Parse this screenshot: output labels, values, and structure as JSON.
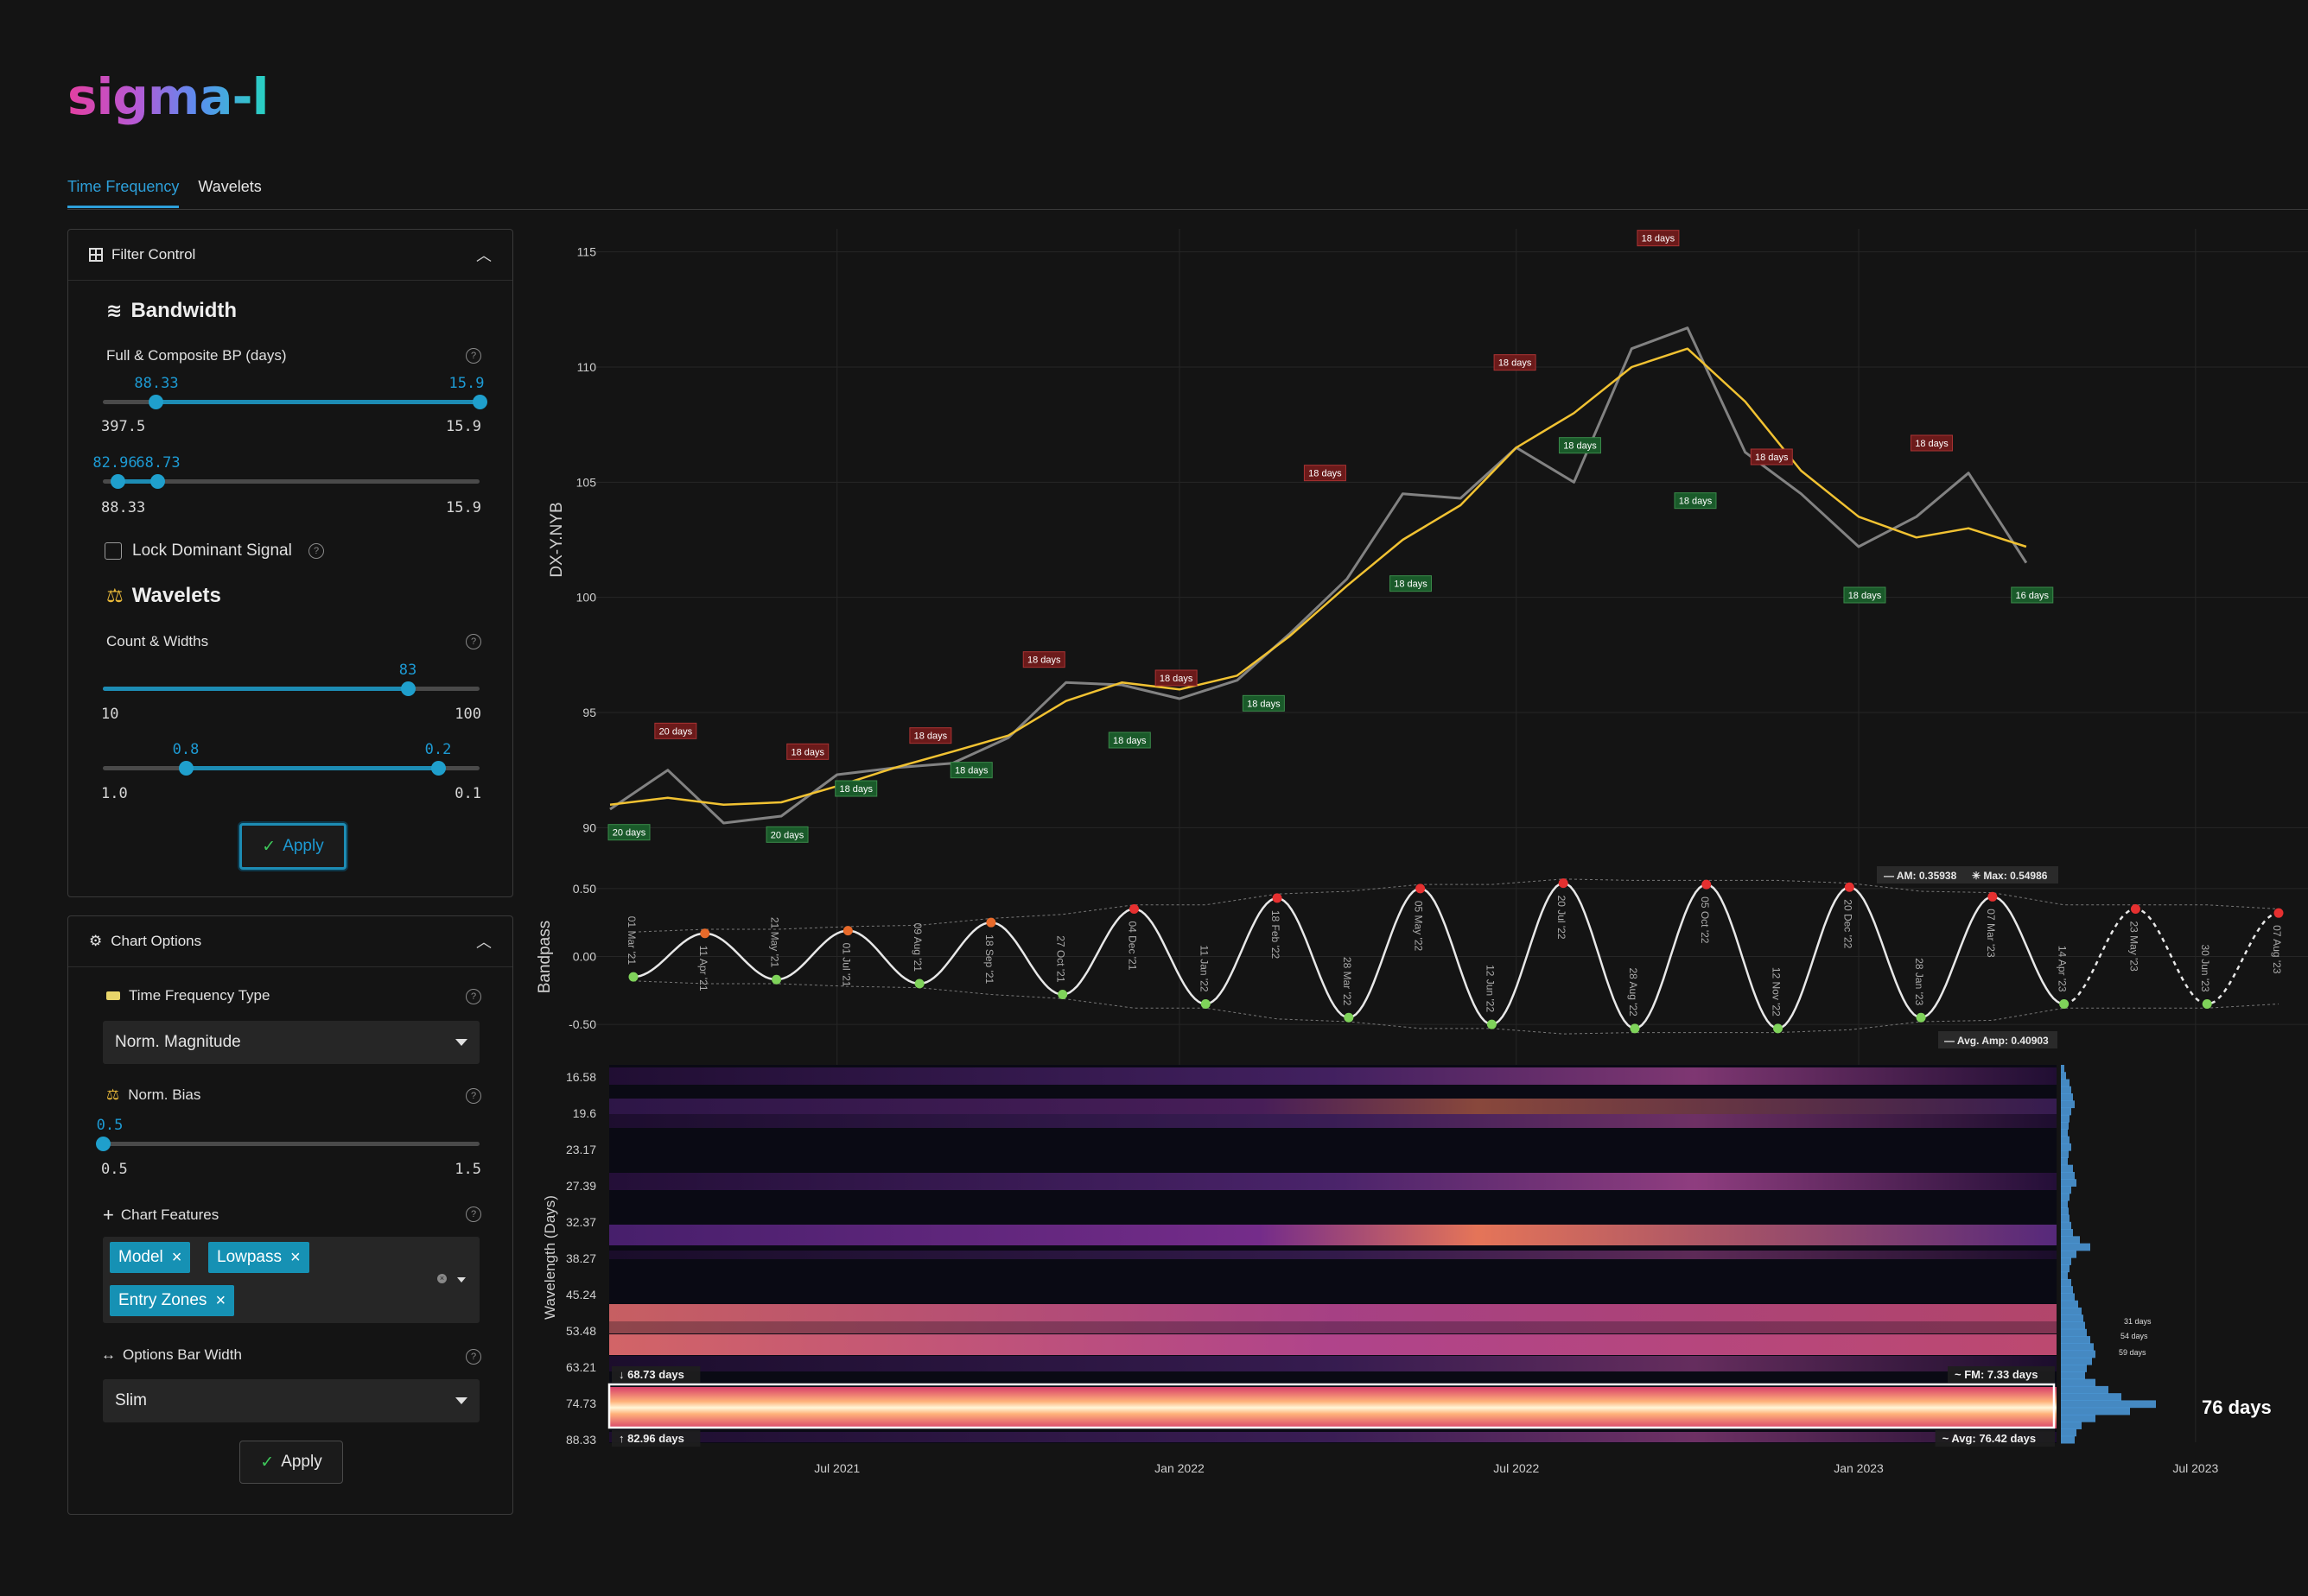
{
  "app": {
    "logo": "sigma-l"
  },
  "tabs": [
    {
      "label": "Time Frequency",
      "active": true
    },
    {
      "label": "Wavelets",
      "active": false
    }
  ],
  "filter_control": {
    "title": "Filter Control",
    "bandwidth": {
      "heading": "Bandwidth",
      "label": "Full & Composite BP (days)",
      "slider1": {
        "low_tip": "88.33",
        "high_tip": "15.9",
        "min": "397.5",
        "max": "15.9",
        "low_pct": 0.14,
        "high_pct": 1.0
      },
      "slider2": {
        "low_tip": "82.96",
        "high_tip": "68.73",
        "min": "88.33",
        "max": "15.9",
        "low_pct": 0.04,
        "high_pct": 0.145
      }
    },
    "lock_label": "Lock Dominant Signal",
    "wavelets": {
      "heading": "Wavelets",
      "label": "Count & Widths",
      "slider1": {
        "tip": "83",
        "min": "10",
        "max": "100",
        "pct": 0.81
      },
      "slider2": {
        "low_tip": "0.8",
        "high_tip": "0.2",
        "min": "1.0",
        "max": "0.1",
        "low_pct": 0.22,
        "high_pct": 0.89
      }
    },
    "apply_label": "Apply"
  },
  "chart_options": {
    "title": "Chart Options",
    "tf_type_label": "Time Frequency Type",
    "tf_type_value": "Norm. Magnitude",
    "norm_bias_label": "Norm. Bias",
    "norm_bias": {
      "tip": "0.5",
      "min": "0.5",
      "max": "1.5",
      "pct": 0.0
    },
    "features_label": "Chart Features",
    "features": [
      "Model",
      "Lowpass",
      "Entry Zones"
    ],
    "bar_width_label": "Options Bar Width",
    "bar_width_value": "Slim",
    "apply_label": "Apply"
  },
  "chart_data": [
    {
      "type": "line",
      "ylabel": "DX-Y.NYB",
      "ylim": [
        89,
        116
      ],
      "yticks": [
        90,
        95,
        100,
        105,
        110,
        115
      ],
      "x_axis_ticks": [
        "Jul 2021",
        "Jan 2022",
        "Jul 2022",
        "Jan 2023",
        "Jul 2023"
      ],
      "series": [
        {
          "name": "",
          "x": [
            "2021-03-01",
            "2021-04-01",
            "2021-05-01",
            "2021-06-01",
            "2021-07-01",
            "2021-08-01",
            "2021-09-01",
            "2021-10-01",
            "2021-11-01",
            "2021-12-01",
            "2022-01-01",
            "2022-02-01",
            "2022-03-01",
            "2022-04-01",
            "2022-05-01",
            "2022-06-01",
            "2022-07-01",
            "2022-08-01",
            "2022-09-01",
            "2022-10-01",
            "2022-11-01",
            "2022-12-01",
            "2023-01-01",
            "2023-02-01",
            "2023-03-01",
            "2023-04-01"
          ],
          "values": [
            90.8,
            92.5,
            90.2,
            90.5,
            92.3,
            92.6,
            92.8,
            93.9,
            96.3,
            96.2,
            95.6,
            96.4,
            98.4,
            100.8,
            104.5,
            104.3,
            106.5,
            105.0,
            110.8,
            111.7,
            106.3,
            104.5,
            102.2,
            103.5,
            105.4,
            101.5
          ]
        },
        {
          "name": "",
          "x": [
            "2021-03-01",
            "2021-04-01",
            "2021-05-01",
            "2021-06-01",
            "2021-07-01",
            "2021-08-01",
            "2021-09-01",
            "2021-10-01",
            "2021-11-01",
            "2021-12-01",
            "2022-01-01",
            "2022-02-01",
            "2022-03-01",
            "2022-04-01",
            "2022-05-01",
            "2022-06-01",
            "2022-07-01",
            "2022-08-01",
            "2022-09-01",
            "2022-10-01",
            "2022-11-01",
            "2022-12-01",
            "2023-01-01",
            "2023-02-01",
            "2023-03-01",
            "2023-04-01"
          ],
          "values": [
            91.0,
            91.3,
            91.0,
            91.1,
            91.8,
            92.6,
            93.3,
            94.0,
            95.5,
            96.3,
            96.0,
            96.6,
            98.3,
            100.5,
            102.5,
            104.0,
            106.5,
            108.0,
            110.0,
            110.8,
            108.5,
            105.5,
            103.5,
            102.6,
            103.0,
            102.2
          ]
        }
      ],
      "annotations": [
        {
          "text": "20 days",
          "kind": "high",
          "x": "2021-03-26",
          "y": 94.2
        },
        {
          "text": "20 days",
          "kind": "low",
          "x": "2021-03-01",
          "y": 89.8
        },
        {
          "text": "20 days",
          "kind": "low",
          "x": "2021-05-25",
          "y": 89.7
        },
        {
          "text": "18 days",
          "kind": "high",
          "x": "2021-06-05",
          "y": 93.3
        },
        {
          "text": "18 days",
          "kind": "low",
          "x": "2021-07-01",
          "y": 91.7
        },
        {
          "text": "18 days",
          "kind": "high",
          "x": "2021-08-10",
          "y": 94.0
        },
        {
          "text": "18 days",
          "kind": "low",
          "x": "2021-09-01",
          "y": 92.5
        },
        {
          "text": "18 days",
          "kind": "high",
          "x": "2021-10-10",
          "y": 97.3
        },
        {
          "text": "18 days",
          "kind": "low",
          "x": "2021-11-25",
          "y": 93.8
        },
        {
          "text": "18 days",
          "kind": "high",
          "x": "2021-12-20",
          "y": 96.5
        },
        {
          "text": "18 days",
          "kind": "low",
          "x": "2022-02-05",
          "y": 95.4
        },
        {
          "text": "18 days",
          "kind": "high",
          "x": "2022-03-10",
          "y": 105.4
        },
        {
          "text": "18 days",
          "kind": "low",
          "x": "2022-04-25",
          "y": 100.6
        },
        {
          "text": "18 days",
          "kind": "high",
          "x": "2022-06-20",
          "y": 110.2
        },
        {
          "text": "18 days",
          "kind": "low",
          "x": "2022-07-25",
          "y": 106.6
        },
        {
          "text": "18 days",
          "kind": "high",
          "x": "2022-09-05",
          "y": 115.6
        },
        {
          "text": "18 days",
          "kind": "low",
          "x": "2022-09-25",
          "y": 104.2
        },
        {
          "text": "18 days",
          "kind": "high",
          "x": "2022-11-05",
          "y": 106.1
        },
        {
          "text": "18 days",
          "kind": "low",
          "x": "2022-12-25",
          "y": 100.1
        },
        {
          "text": "18 days",
          "kind": "high",
          "x": "2023-01-30",
          "y": 106.7
        },
        {
          "text": "16 days",
          "kind": "low",
          "x": "2023-03-25",
          "y": 100.1
        }
      ]
    },
    {
      "type": "line",
      "ylabel": "Bandpass",
      "ylim": [
        -0.62,
        0.62
      ],
      "yticks": [
        0.5,
        0.0,
        -0.5
      ],
      "ytick_labels": [
        "0.50",
        "0.00",
        "-0.50"
      ],
      "series": [
        {
          "name": "",
          "values": [
            -0.15,
            0.17,
            -0.17,
            0.19,
            -0.2,
            0.25,
            -0.28,
            0.35,
            -0.35,
            0.43,
            -0.45,
            0.5,
            -0.5,
            0.54,
            -0.53,
            0.53,
            -0.53,
            0.51,
            -0.45,
            0.44,
            -0.35,
            0.35,
            -0.35,
            0.32
          ]
        }
      ],
      "point_labels": [
        "01 Mar '21",
        "11 Apr '21",
        "21 May '21",
        "01 Jul '21",
        "09 Aug '21",
        "18 Sep '21",
        "27 Oct '21",
        "04 Dec '21",
        "11 Jan '22",
        "18 Feb '22",
        "28 Mar '22",
        "05 May '22",
        "12 Jun '22",
        "20 Jul '22",
        "28 Aug '22",
        "05 Oct '22",
        "12 Nov '22",
        "20 Dec '22",
        "28 Jan '23",
        "07 Mar '23",
        "14 Apr '23",
        "23 May '23",
        "30 Jun '23",
        "07 Aug '23"
      ],
      "readouts": {
        "am": "AM: 0.35938",
        "max": "Max: 0.54986",
        "avg_amp": "Avg. Amp: 0.40903"
      }
    },
    {
      "type": "heatmap",
      "ylabel": "Wavelength (Days)",
      "ytick_labels": [
        "16.58",
        "19.6",
        "23.17",
        "27.39",
        "32.37",
        "38.27",
        "45.24",
        "53.48",
        "63.21",
        "74.73",
        "88.33"
      ],
      "band_labels": {
        "upper": "68.73 days",
        "lower": "82.96 days",
        "fm": "FM: 7.33 days",
        "avg": "Avg: 76.42 days"
      },
      "side_histogram_labels": [
        "31 days",
        "54 days",
        "59 days"
      ],
      "dominant_label": "76 days",
      "colors": {
        "hot": "#fff3c8",
        "warm": "#f07a5c",
        "mid": "#c24a98",
        "cool": "#5a2a80",
        "bg": "#0a0a14"
      }
    }
  ]
}
